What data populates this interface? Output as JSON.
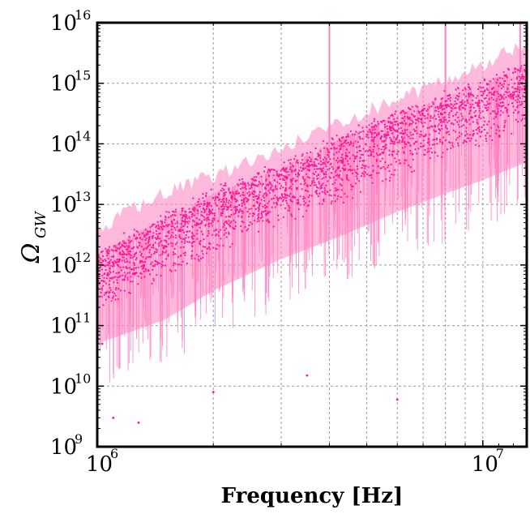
{
  "chart_data": {
    "type": "scatter",
    "xlabel": "Frequency [Hz]",
    "ylabel": "Ω",
    "ylabel_subscript": "GW",
    "xscale": "log",
    "yscale": "log",
    "xlim": [
      1000000,
      13000000
    ],
    "ylim": [
      1000000000.0,
      1e+16
    ],
    "grid": true,
    "x_ticks": [
      {
        "value": 1000000,
        "base": "10",
        "exp": "6"
      },
      {
        "value": 10000000,
        "base": "10",
        "exp": "7"
      }
    ],
    "y_ticks": [
      {
        "value": 1000000000.0,
        "base": "10",
        "exp": "9"
      },
      {
        "value": 10000000000.0,
        "base": "10",
        "exp": "10"
      },
      {
        "value": 100000000000.0,
        "base": "10",
        "exp": "11"
      },
      {
        "value": 1000000000000.0,
        "base": "10",
        "exp": "12"
      },
      {
        "value": 10000000000000.0,
        "base": "10",
        "exp": "13"
      },
      {
        "value": 100000000000000.0,
        "base": "10",
        "exp": "14"
      },
      {
        "value": 1000000000000000.0,
        "base": "10",
        "exp": "15"
      },
      {
        "value": 1e+16,
        "base": "10",
        "exp": "16"
      }
    ],
    "series": [
      {
        "marker_color": "#ff1493",
        "line_color": "#ff80c0",
        "upper_envelope": [
          [
            1000000,
            3000000000000.0
          ],
          [
            1200000,
            8000000000000.0
          ],
          [
            1500000,
            15000000000000.0
          ],
          [
            2000000,
            30000000000000.0
          ],
          [
            3000000,
            80000000000000.0
          ],
          [
            4000000,
            200000000000000.0
          ],
          [
            5000000,
            350000000000000.0
          ],
          [
            7000000,
            800000000000000.0
          ],
          [
            10000000,
            2000000000000000.0
          ],
          [
            13000000,
            4500000000000000.0
          ]
        ],
        "dense_band_upper": [
          [
            1000000,
            1500000000000.0
          ],
          [
            1500000,
            6000000000000.0
          ],
          [
            2000000,
            15000000000000.0
          ],
          [
            3000000,
            40000000000000.0
          ],
          [
            4000000,
            100000000000000.0
          ],
          [
            6000000,
            300000000000000.0
          ],
          [
            8000000,
            600000000000000.0
          ],
          [
            10000000,
            1000000000000000.0
          ],
          [
            13000000,
            2000000000000000.0
          ]
        ],
        "dense_band_lower": [
          [
            1000000,
            200000000000.0
          ],
          [
            1500000,
            500000000000.0
          ],
          [
            2000000,
            1500000000000.0
          ],
          [
            3000000,
            5000000000000.0
          ],
          [
            4000000,
            10000000000000.0
          ],
          [
            6000000,
            30000000000000.0
          ],
          [
            8000000,
            60000000000000.0
          ],
          [
            10000000,
            100000000000000.0
          ],
          [
            13000000,
            200000000000000.0
          ]
        ],
        "spikes_up": [
          [
            4000000,
            1e+16
          ],
          [
            8000000,
            1e+16
          ],
          [
            12500000,
            1e+16
          ]
        ],
        "outliers_low": [
          [
            1030000,
            50000000000.0
          ],
          [
            1100000,
            3000000000.0
          ],
          [
            1280000,
            2500000000.0
          ],
          [
            2000000,
            8000000000.0
          ],
          [
            3500000,
            15000000000.0
          ],
          [
            6000000,
            6000000000.0
          ],
          [
            13000000,
            300000000000.0
          ]
        ]
      }
    ]
  }
}
